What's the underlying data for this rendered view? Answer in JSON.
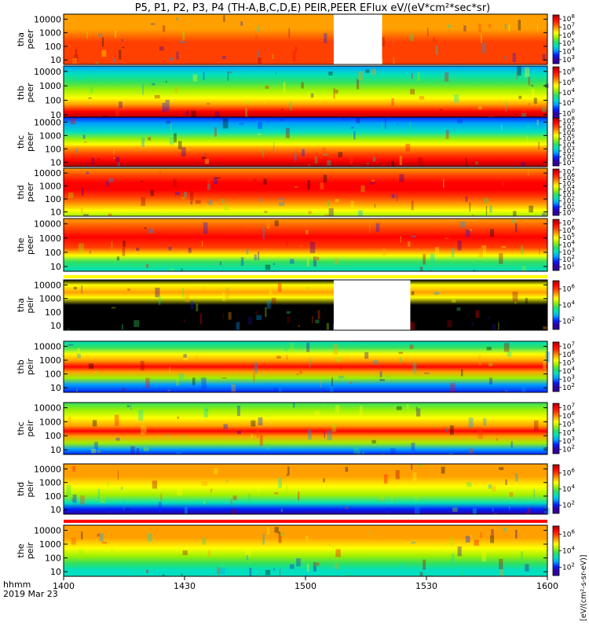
{
  "chart_data": {
    "type": "heatmap",
    "title": "P5, P1, P2, P3, P4 (TH-A,B,C,D,E) PEIR,PEER EFlux eV/(eV*cm²*sec*sr)",
    "x_tick_labels": [
      "1400",
      "1430",
      "1500",
      "1530",
      "1600"
    ],
    "x_range": [
      "14:00",
      "16:00"
    ],
    "corner_label_1": "hhmm",
    "corner_label_2": "2019 Mar 23",
    "y_tick_labels": [
      "10",
      "100",
      "1000",
      "10000"
    ],
    "y_scale": "log",
    "colorbar_unit_label": "[eV/(cm²-s-sr-eV)]",
    "panels": [
      {
        "probe": "tha",
        "species": "peer",
        "label_line1": "tha",
        "label_line2": "peer",
        "colorbar_exponents": [
          "3",
          "4",
          "5",
          "6",
          "7",
          "8"
        ],
        "data_gaps": [
          [
            "15:07",
            "15:19"
          ]
        ]
      },
      {
        "probe": "thb",
        "species": "peer",
        "label_line1": "thb",
        "label_line2": "peer",
        "colorbar_exponents": [
          "0",
          "2",
          "4",
          "6",
          "8"
        ],
        "data_gaps": []
      },
      {
        "probe": "thc",
        "species": "peer",
        "label_line1": "thc",
        "label_line2": "peer",
        "colorbar_exponents": [
          "1",
          "2",
          "3",
          "4",
          "5",
          "6",
          "7",
          "8"
        ],
        "data_gaps": []
      },
      {
        "probe": "thd",
        "species": "peer",
        "label_line1": "thd",
        "label_line2": "peer",
        "colorbar_exponents": [
          "0",
          "1",
          "2",
          "3",
          "4",
          "5",
          "6",
          "7"
        ],
        "data_gaps": []
      },
      {
        "probe": "the",
        "species": "peer",
        "label_line1": "the",
        "label_line2": "peer",
        "colorbar_exponents": [
          "1",
          "2",
          "3",
          "4",
          "5",
          "6",
          "7"
        ],
        "data_gaps": []
      },
      {
        "probe": "tha",
        "species": "peir",
        "label_line1": "tha",
        "label_line2": "peir",
        "colorbar_exponents": [
          "2",
          "4",
          "6"
        ],
        "data_gaps": [
          [
            "15:07",
            "15:26"
          ]
        ]
      },
      {
        "probe": "thb",
        "species": "peir",
        "label_line1": "thb",
        "label_line2": "peir",
        "colorbar_exponents": [
          "2",
          "3",
          "4",
          "5",
          "6",
          "7"
        ],
        "data_gaps": []
      },
      {
        "probe": "thc",
        "species": "peir",
        "label_line1": "thc",
        "label_line2": "peir",
        "colorbar_exponents": [
          "2",
          "3",
          "4",
          "5",
          "6",
          "7"
        ],
        "data_gaps": []
      },
      {
        "probe": "thd",
        "species": "peir",
        "label_line1": "thd",
        "label_line2": "peir",
        "colorbar_exponents": [
          "2",
          "4",
          "6"
        ],
        "data_gaps": []
      },
      {
        "probe": "the",
        "species": "peir",
        "label_line1": "the",
        "label_line2": "peir",
        "colorbar_exponents": [
          "2",
          "4",
          "6"
        ],
        "data_gaps": []
      }
    ]
  },
  "colors": {
    "colormap": [
      "#000000",
      "#3000a0",
      "#0020ff",
      "#00a0ff",
      "#00e0c0",
      "#30e060",
      "#a0f000",
      "#ffff00",
      "#ffa000",
      "#ff4000",
      "#ff0000",
      "#a00000"
    ]
  }
}
